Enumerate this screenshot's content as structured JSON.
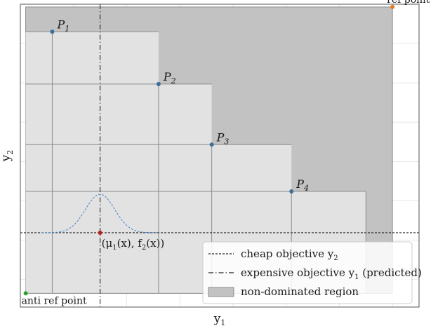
{
  "chart_data": {
    "type": "area",
    "title": "",
    "xlabel": "y",
    "xlabel_sub": "1",
    "ylabel": "y",
    "ylabel_sub": "2",
    "xlim": [
      0,
      15
    ],
    "ylim": [
      0,
      11
    ],
    "grid": true,
    "ref_point": {
      "label": "ref point",
      "x": 14.0,
      "y": 10.9,
      "color": "#e07b1e"
    },
    "anti_ref_point": {
      "label": "anti ref point",
      "x": 0.2,
      "y": 0.5,
      "color": "#2ca02c"
    },
    "pareto_points": [
      {
        "name": "P",
        "sub": "1",
        "x": 1.2,
        "y": 10.0,
        "color": "#3a6e9c"
      },
      {
        "name": "P",
        "sub": "2",
        "x": 5.2,
        "y": 8.1,
        "color": "#3a6e9c"
      },
      {
        "name": "P",
        "sub": "3",
        "x": 7.2,
        "y": 5.9,
        "color": "#3a6e9c"
      },
      {
        "name": "P",
        "sub": "4",
        "x": 10.2,
        "y": 4.2,
        "color": "#3a6e9c"
      }
    ],
    "partial_label": "P",
    "dominated_step_corners": [
      {
        "x": 5.2,
        "y": 10.0
      },
      {
        "x": 7.2,
        "y": 8.1
      },
      {
        "x": 10.2,
        "y": 5.9
      },
      {
        "x": 13.0,
        "y": 4.2
      },
      {
        "x": 13.0,
        "y": 0.5
      }
    ],
    "candidate": {
      "x": 3.0,
      "y": 2.7,
      "color": "#b22222",
      "label_parts": [
        "(μ",
        "1",
        "(x), f",
        "2",
        "(x))"
      ]
    },
    "gaussian": {
      "mean": 3.0,
      "sigma": 0.55,
      "height": 1.4,
      "base_y": 2.7,
      "color": "#4a86c8"
    },
    "cheap_line_y": 2.7,
    "expensive_line_x": 3.0,
    "legend": {
      "position": "lower right",
      "entries": [
        {
          "style": "dotted",
          "label": "cheap objective y",
          "sub": "2"
        },
        {
          "style": "dashdot",
          "label": "expensive objective y",
          "sub": "1",
          "suffix": " (predicted)"
        },
        {
          "style": "patch",
          "label": "non-dominated region"
        }
      ]
    },
    "colors": {
      "dominated": "#c2c2c2",
      "nondominated": "#e2e2e2",
      "box_edge": "#8c8c8c",
      "grid": "#e6e6e6"
    }
  }
}
